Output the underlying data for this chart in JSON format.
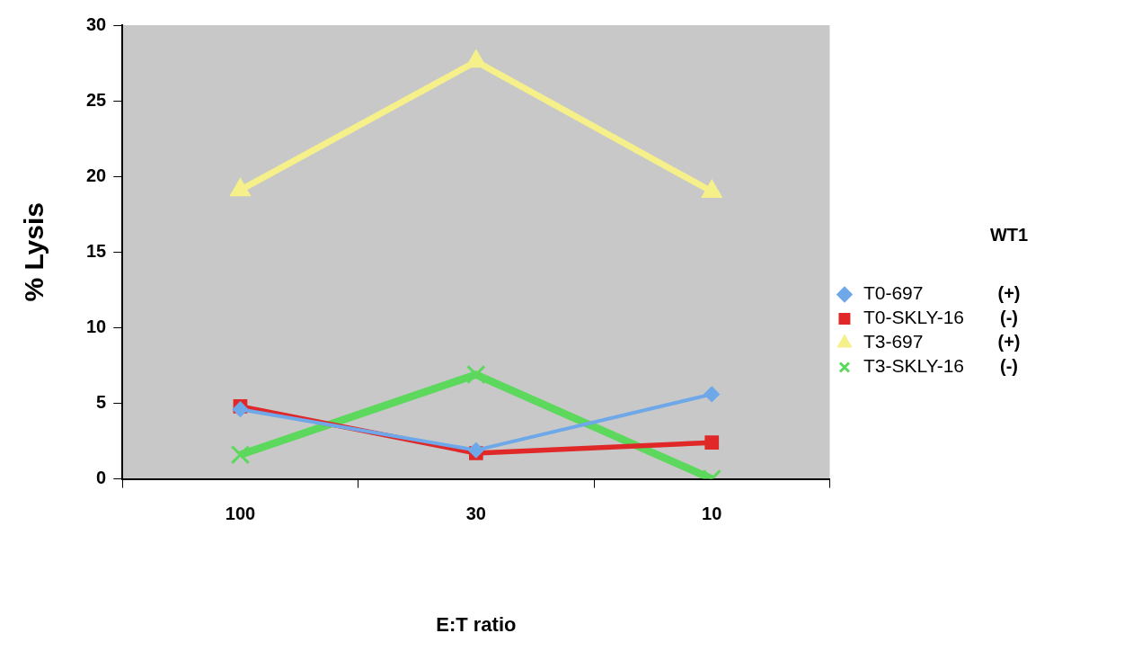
{
  "chart_data": {
    "type": "line",
    "xlabel": "E:T ratio",
    "ylabel": "% Lysis",
    "categories": [
      "100",
      "30",
      "10"
    ],
    "series": [
      {
        "name": "T0-697",
        "color": "#6fa8e8",
        "marker": "diamond",
        "values": [
          4.6,
          1.9,
          5.6
        ]
      },
      {
        "name": "T0-SKLY-16",
        "color": "#e02828",
        "marker": "square",
        "values": [
          4.8,
          1.7,
          2.4
        ]
      },
      {
        "name": "T3-697",
        "color": "#f5f08a",
        "marker": "triangle",
        "values": [
          19.1,
          27.6,
          19.0
        ]
      },
      {
        "name": "T3-SKLY-16",
        "color": "#5cd85c",
        "marker": "cross",
        "values": [
          1.6,
          6.9,
          0
        ]
      }
    ],
    "ylim": [
      0,
      30
    ],
    "yticks": [
      0,
      5,
      10,
      15,
      20,
      25,
      30
    ],
    "grid": false,
    "legend": "right",
    "line_style": "solid",
    "annotations": [
      "WT1",
      "(+)",
      "(-)",
      "(+)",
      "(-)"
    ]
  }
}
